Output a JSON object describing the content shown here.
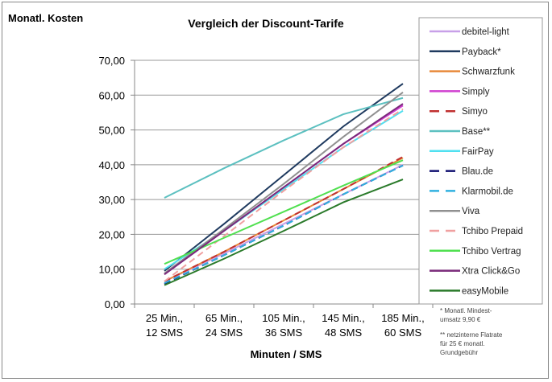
{
  "chart_data": {
    "type": "line",
    "title": "Vergleich der Discount-Tarife",
    "ylabel": "Monatl. Kosten",
    "xlabel": "Minuten / SMS",
    "ylim": [
      0,
      70
    ],
    "yticks": [
      "0,00",
      "10,00",
      "20,00",
      "30,00",
      "40,00",
      "50,00",
      "60,00",
      "70,00"
    ],
    "ytick_values": [
      0,
      10,
      20,
      30,
      40,
      50,
      60,
      70
    ],
    "categories": [
      [
        "25 Min.,",
        "12 SMS"
      ],
      [
        "65 Min.,",
        "24 SMS"
      ],
      [
        "105 Min.,",
        "36 SMS"
      ],
      [
        "145 Min.,",
        "48 SMS"
      ],
      [
        "185 Min.,",
        "60 SMS"
      ]
    ],
    "grid": true,
    "legend_position": "right",
    "series": [
      {
        "name": "debitel-light",
        "color": "#c8a0e8",
        "dash": false,
        "values": [
          6.5,
          14.5,
          23,
          31.5,
          40
        ]
      },
      {
        "name": "Payback*",
        "color": "#1f3a5f",
        "dash": false,
        "values": [
          9.5,
          23,
          37,
          51,
          63.3
        ]
      },
      {
        "name": "Schwarzfunk",
        "color": "#e8893a",
        "dash": false,
        "values": [
          6.5,
          15,
          24,
          33,
          42
        ]
      },
      {
        "name": "Simply",
        "color": "#d040d0",
        "dash": false,
        "values": [
          8.5,
          21,
          33.5,
          46,
          57
        ]
      },
      {
        "name": "Simyo",
        "color": "#c03030",
        "dash": true,
        "values": [
          6.5,
          15,
          24,
          33,
          42.3
        ]
      },
      {
        "name": "Base**",
        "color": "#5cc0c0",
        "dash": false,
        "values": [
          30.5,
          39,
          47,
          54.5,
          59.2
        ]
      },
      {
        "name": "FairPay",
        "color": "#50e0f0",
        "dash": false,
        "values": [
          10,
          21,
          33,
          45,
          55.5
        ]
      },
      {
        "name": "Blau.de",
        "color": "#101070",
        "dash": true,
        "values": [
          5.8,
          14,
          22.5,
          31.5,
          39.8
        ]
      },
      {
        "name": "Klarmobil.de",
        "color": "#30b0e0",
        "dash": true,
        "values": [
          6,
          14,
          22.5,
          31.5,
          39.8
        ]
      },
      {
        "name": "Viva",
        "color": "#909090",
        "dash": false,
        "values": [
          8.8,
          21.5,
          34.5,
          48,
          60.8
        ]
      },
      {
        "name": "Tchibo Prepaid",
        "color": "#f0a0a0",
        "dash": true,
        "values": [
          6.5,
          19.5,
          32.5,
          45,
          56
        ]
      },
      {
        "name": "Tchibo Vertrag",
        "color": "#50e050",
        "dash": false,
        "values": [
          11.5,
          19,
          26.5,
          34,
          41.3
        ]
      },
      {
        "name": "Xtra Click&Go",
        "color": "#7a2a7a",
        "dash": false,
        "values": [
          8.5,
          21,
          33.5,
          46,
          57.5
        ]
      },
      {
        "name": "easyMobile",
        "color": "#2a7a2a",
        "dash": false,
        "values": [
          5.4,
          13,
          21,
          29.2,
          35.8
        ]
      }
    ],
    "footnotes": [
      "* Monatl. Mindest-",
      "umsatz 9,90 €",
      "** netzinterne Flatrate",
      "für 25 € monatl.",
      "Grundgebühr"
    ]
  }
}
